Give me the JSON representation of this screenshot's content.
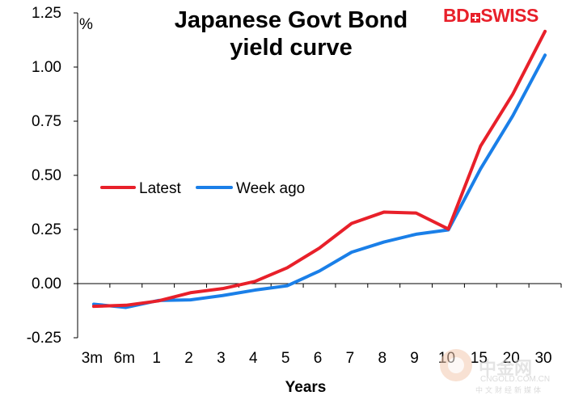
{
  "title_line1": "Japanese  Govt Bond",
  "title_line2": "yield curve",
  "logo": {
    "bd": "BD",
    "swiss": "SWISS"
  },
  "watermark": {
    "text": "中金网",
    "domain": "CNGOLD.COM.CN",
    "sub": "中文财经新媒体"
  },
  "colors": {
    "latest": "#e8202a",
    "week_ago": "#1a7fe8",
    "axis": "#000000"
  },
  "chart_data": {
    "type": "line",
    "x": [
      "3m",
      "6m",
      "1",
      "2",
      "3",
      "4",
      "5",
      "6",
      "7",
      "8",
      "9",
      "10",
      "15",
      "20",
      "30"
    ],
    "ylabel": "%",
    "xlabel": "Years",
    "ylim": [
      -0.25,
      1.25
    ],
    "yticks": [
      1.25,
      1.0,
      0.75,
      0.5,
      0.25,
      0.0,
      -0.25
    ],
    "ytick_labels": [
      "1.25",
      "1.00",
      "0.75",
      "0.50",
      "0.25",
      "0.00",
      "-0.25"
    ],
    "grid": false,
    "legend_position": "middle-left",
    "series": [
      {
        "name": "Latest",
        "color": "#e8202a",
        "values": [
          -0.105,
          -0.1,
          -0.08,
          -0.042,
          -0.023,
          0.01,
          0.073,
          0.164,
          0.278,
          0.33,
          0.326,
          0.252,
          0.635,
          0.875,
          1.165
        ]
      },
      {
        "name": "Week ago",
        "color": "#1a7fe8",
        "values": [
          -0.095,
          -0.11,
          -0.078,
          -0.075,
          -0.055,
          -0.03,
          -0.01,
          0.058,
          0.145,
          0.192,
          0.228,
          0.248,
          0.53,
          0.775,
          1.055
        ]
      }
    ]
  }
}
